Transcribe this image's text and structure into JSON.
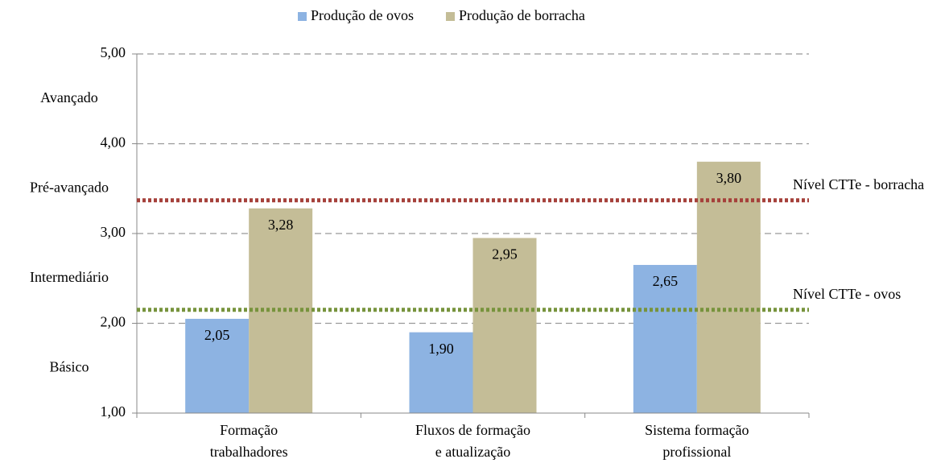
{
  "chart_data": {
    "type": "bar",
    "categories": [
      "Formação\ntrabalhadores",
      "Fluxos de formação\ne atualização",
      "Sistema formação\nprofissional"
    ],
    "series": [
      {
        "name": "Produção de ovos",
        "color": "#8db3e2",
        "values": [
          2.05,
          1.9,
          2.65
        ],
        "value_labels": [
          "2,05",
          "1,90",
          "2,65"
        ]
      },
      {
        "name": "Produção de borracha",
        "color": "#c4bd97",
        "values": [
          3.28,
          2.95,
          3.8
        ],
        "value_labels": [
          "3,28",
          "2,95",
          "3,80"
        ]
      }
    ],
    "ylim": [
      1,
      5
    ],
    "yticks": [
      {
        "value": 1,
        "label": "1,00"
      },
      {
        "value": 2,
        "label": "2,00"
      },
      {
        "value": 3,
        "label": "3,00"
      },
      {
        "value": 4,
        "label": "4,00"
      },
      {
        "value": 5,
        "label": "5,00"
      }
    ],
    "grid": true,
    "legend": "top",
    "level_labels": [
      "Básico",
      "Intermediário",
      "Pré-avançado",
      "Avançado"
    ],
    "reference_lines": [
      {
        "label": "Nível CTTe - borracha",
        "value": 3.37,
        "color": "#a5403a"
      },
      {
        "label": "Nível CTTe - ovos",
        "value": 2.15,
        "color": "#77933c"
      }
    ]
  }
}
